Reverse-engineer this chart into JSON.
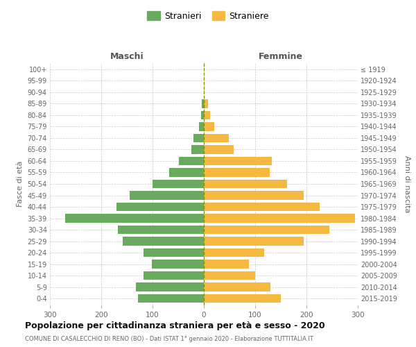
{
  "age_groups": [
    "100+",
    "95-99",
    "90-94",
    "85-89",
    "80-84",
    "75-79",
    "70-74",
    "65-69",
    "60-64",
    "55-59",
    "50-54",
    "45-49",
    "40-44",
    "35-39",
    "30-34",
    "25-29",
    "20-24",
    "15-19",
    "10-14",
    "5-9",
    "0-4"
  ],
  "birth_years": [
    "≤ 1919",
    "1920-1924",
    "1925-1929",
    "1930-1934",
    "1935-1939",
    "1940-1944",
    "1945-1949",
    "1950-1954",
    "1955-1959",
    "1960-1964",
    "1965-1969",
    "1970-1974",
    "1975-1979",
    "1980-1984",
    "1985-1989",
    "1990-1994",
    "1995-1999",
    "2000-2004",
    "2005-2009",
    "2010-2014",
    "2015-2019"
  ],
  "maschi": [
    0,
    0,
    0,
    4,
    6,
    10,
    20,
    25,
    48,
    68,
    100,
    145,
    170,
    270,
    168,
    158,
    118,
    102,
    118,
    132,
    128
  ],
  "femmine": [
    0,
    0,
    0,
    8,
    12,
    20,
    48,
    58,
    132,
    128,
    162,
    195,
    225,
    295,
    245,
    195,
    118,
    88,
    100,
    130,
    150
  ],
  "color_maschi": "#6aaa5e",
  "color_femmine": "#f5b942",
  "color_grid": "#cccccc",
  "color_center_line": "#888800",
  "title": "Popolazione per cittadinanza straniera per età e sesso - 2020",
  "subtitle": "COMUNE DI CASALECCHIO DI RENO (BO) - Dati ISTAT 1° gennaio 2020 - Elaborazione TUTTITALIA.IT",
  "ylabel_left": "Fasce di età",
  "ylabel_right": "Anni di nascita",
  "xlabel_maschi": "Maschi",
  "xlabel_femmine": "Femmine",
  "legend_maschi": "Stranieri",
  "legend_femmine": "Straniere",
  "xlim": 300,
  "background_color": "#ffffff",
  "bar_height": 0.75
}
